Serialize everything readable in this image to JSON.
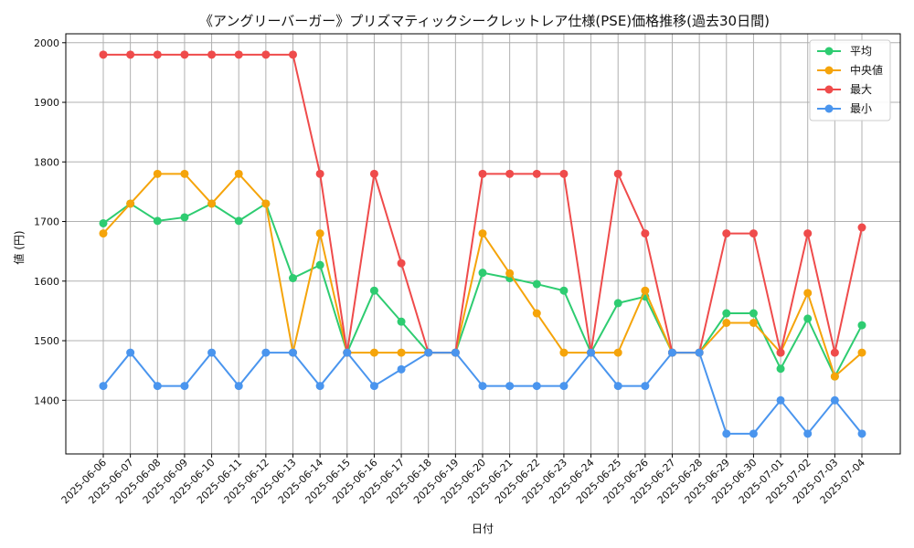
{
  "chart_data": {
    "type": "line",
    "title": "《アングリーバーガー》プリズマティックシークレットレア仕様(PSE)価格推移(過去30日間)",
    "xlabel": "日付",
    "ylabel": "値 (円)",
    "ylim": [
      1310,
      2015
    ],
    "yticks": [
      1400,
      1500,
      1600,
      1700,
      1800,
      1900,
      2000
    ],
    "grid": true,
    "legend_position": "top-right",
    "categories": [
      "2025-06-06",
      "2025-06-07",
      "2025-06-08",
      "2025-06-09",
      "2025-06-10",
      "2025-06-11",
      "2025-06-12",
      "2025-06-13",
      "2025-06-14",
      "2025-06-15",
      "2025-06-16",
      "2025-06-17",
      "2025-06-18",
      "2025-06-19",
      "2025-06-20",
      "2025-06-21",
      "2025-06-22",
      "2025-06-23",
      "2025-06-24",
      "2025-06-25",
      "2025-06-26",
      "2025-06-27",
      "2025-06-28",
      "2025-06-29",
      "2025-06-30",
      "2025-07-01",
      "2025-07-02",
      "2025-07-03",
      "2025-07-04"
    ],
    "series": [
      {
        "name": "平均",
        "color": "#2ecc71",
        "values": [
          1697,
          1730,
          1701,
          1707,
          1730,
          1701,
          1730,
          1605,
          1627,
          1480,
          1584,
          1532,
          1480,
          1480,
          1614,
          1605,
          1595,
          1584,
          1480,
          1563,
          1574,
          1480,
          1480,
          1546,
          1546,
          1453,
          1537,
          1440,
          1526
        ]
      },
      {
        "name": "中央値",
        "color": "#f5a40a",
        "values": [
          1680,
          1730,
          1780,
          1780,
          1730,
          1780,
          1730,
          1480,
          1680,
          1480,
          1480,
          1480,
          1480,
          1480,
          1680,
          1613,
          1546,
          1480,
          1480,
          1480,
          1584,
          1480,
          1480,
          1530,
          1530,
          1480,
          1580,
          1440,
          1480
        ]
      },
      {
        "name": "最大",
        "color": "#ef4b4b",
        "values": [
          1980,
          1980,
          1980,
          1980,
          1980,
          1980,
          1980,
          1980,
          1780,
          1480,
          1780,
          1630,
          1480,
          1480,
          1780,
          1780,
          1780,
          1780,
          1480,
          1780,
          1680,
          1480,
          1480,
          1680,
          1680,
          1480,
          1680,
          1480,
          1690
        ]
      },
      {
        "name": "最小",
        "color": "#4a95ee",
        "values": [
          1424,
          1480,
          1424,
          1424,
          1480,
          1424,
          1480,
          1480,
          1424,
          1480,
          1424,
          1452,
          1480,
          1480,
          1424,
          1424,
          1424,
          1424,
          1480,
          1424,
          1424,
          1480,
          1480,
          1344,
          1344,
          1400,
          1344,
          1400,
          1344
        ]
      }
    ]
  }
}
